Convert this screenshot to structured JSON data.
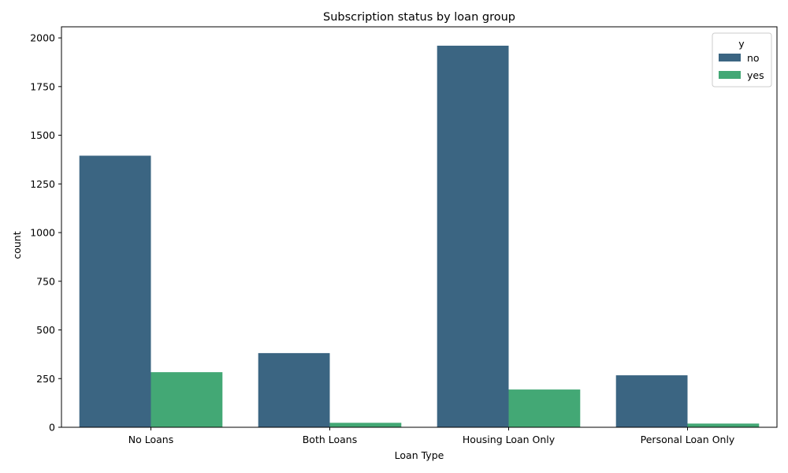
{
  "chart_data": {
    "type": "bar",
    "title": "Subscription status by loan group",
    "xlabel": "Loan Type",
    "ylabel": "count",
    "categories": [
      "No Loans",
      "Both Loans",
      "Housing Loan Only",
      "Personal Loan Only"
    ],
    "series": [
      {
        "name": "no",
        "color": "#3b6582",
        "values": [
          1395,
          381,
          1960,
          267
        ]
      },
      {
        "name": "yes",
        "color": "#43a875",
        "values": [
          283,
          23,
          194,
          19
        ]
      }
    ],
    "ylim": [
      0,
      2057
    ],
    "yticks": [
      0,
      250,
      500,
      750,
      1000,
      1250,
      1500,
      1750,
      2000
    ],
    "ytick_labels": [
      "0",
      "250",
      "500",
      "750",
      "1000",
      "1250",
      "1500",
      "1750",
      "2000"
    ],
    "grid": false,
    "legend": {
      "title": "y",
      "placement": "top-right",
      "entries": [
        "no",
        "yes"
      ]
    }
  }
}
